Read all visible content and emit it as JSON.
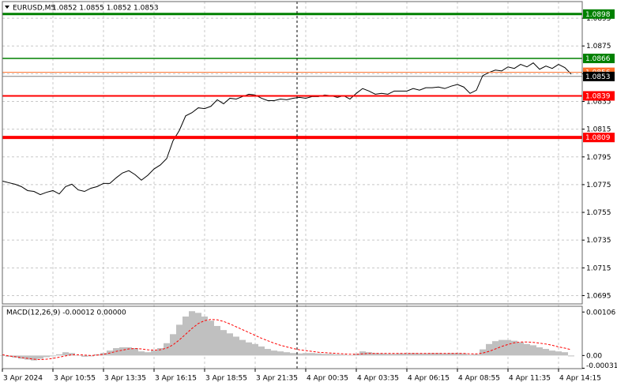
{
  "chart_data": [
    {
      "type": "line",
      "title": "EURUSD,M5",
      "subtitle": "1.0852 1.0855 1.0852 1.0853",
      "xlim": [
        0,
        367
      ],
      "xticks": [
        {
          "value": 0,
          "label": "3 Apr 2024"
        },
        {
          "value": 32,
          "label": "3 Apr 10:55"
        },
        {
          "value": 64,
          "label": "3 Apr 13:35"
        },
        {
          "value": 96,
          "label": "3 Apr 16:15"
        },
        {
          "value": 128,
          "label": "3 Apr 18:55"
        },
        {
          "value": 160,
          "label": "3 Apr 21:35"
        },
        {
          "value": 192,
          "label": "4 Apr 00:35"
        },
        {
          "value": 224,
          "label": "4 Apr 03:35"
        },
        {
          "value": 256,
          "label": "4 Apr 06:15"
        },
        {
          "value": 288,
          "label": "4 Apr 08:55"
        },
        {
          "value": 320,
          "label": "4 Apr 11:35"
        },
        {
          "value": 352,
          "label": "4 Apr 14:15"
        }
      ],
      "ylim": [
        1.0689,
        1.0907
      ],
      "yticks": [
        1.0695,
        1.0715,
        1.0735,
        1.0755,
        1.0775,
        1.0795,
        1.0815,
        1.0835,
        1.0855,
        1.0875,
        1.0895
      ],
      "grid": true,
      "x": [
        0,
        4,
        8,
        12,
        16,
        20,
        24,
        28,
        32,
        36,
        40,
        44,
        48,
        52,
        56,
        60,
        64,
        68,
        72,
        76,
        80,
        84,
        88,
        92,
        96,
        100,
        104,
        108,
        112,
        116,
        120,
        124,
        128,
        132,
        136,
        140,
        144,
        148,
        152,
        156,
        160,
        164,
        168,
        172,
        176,
        180,
        184,
        188,
        192,
        196,
        200,
        204,
        208,
        212,
        216,
        220,
        224,
        228,
        232,
        236,
        240,
        244,
        248,
        252,
        256,
        260,
        264,
        268,
        272,
        276,
        280,
        284,
        288,
        292,
        296,
        300,
        304,
        308,
        312,
        316,
        320,
        324,
        328,
        332,
        336,
        340,
        344,
        348,
        352,
        356,
        360
      ],
      "series": [
        {
          "color": "#000000",
          "values": [
            1.07776,
            1.07764,
            1.07753,
            1.07736,
            1.07707,
            1.07701,
            1.07678,
            1.07695,
            1.07707,
            1.07683,
            1.07736,
            1.07753,
            1.07712,
            1.07701,
            1.07724,
            1.07736,
            1.07759,
            1.07759,
            1.07799,
            1.07834,
            1.07851,
            1.07822,
            1.07782,
            1.07817,
            1.07863,
            1.07892,
            1.07938,
            1.08066,
            1.08141,
            1.08246,
            1.08269,
            1.08304,
            1.08298,
            1.08315,
            1.08362,
            1.08333,
            1.08373,
            1.08367,
            1.08385,
            1.08402,
            1.08396,
            1.08373,
            1.08356,
            1.08356,
            1.08367,
            1.08362,
            1.08373,
            1.08379,
            1.08373,
            1.08385,
            1.08385,
            1.08396,
            1.08391,
            1.08379,
            1.08391,
            1.08367,
            1.08408,
            1.08443,
            1.08425,
            1.08402,
            1.08408,
            1.08402,
            1.08425,
            1.08425,
            1.08425,
            1.08443,
            1.08431,
            1.08449,
            1.08449,
            1.08454,
            1.08443,
            1.0846,
            1.08472,
            1.08454,
            1.08408,
            1.08431,
            1.08536,
            1.08559,
            1.08576,
            1.0857,
            1.08599,
            1.08588,
            1.08617,
            1.08599,
            1.08628,
            1.08582,
            1.08605,
            1.08588,
            1.08617,
            1.08594,
            1.08547
          ]
        }
      ],
      "levels": [
        {
          "value": 1.0898,
          "color": "#008000",
          "width": 3
        },
        {
          "value": 1.0866,
          "color": "#008000",
          "width": 1.5
        },
        {
          "value": 1.0839,
          "color": "#ff0000",
          "width": 2
        },
        {
          "value": 1.0809,
          "color": "#ff0000",
          "width": 4
        }
      ],
      "ask": {
        "value": 1.0856,
        "color": "#ff6f2a"
      },
      "current_price": {
        "value": 1.0853,
        "color": "#000000"
      }
    },
    {
      "type": "macd",
      "title": "MACD(12,26,9) -0.00012 0.00000",
      "ylim": [
        -0.00032,
        0.0012
      ],
      "yticks": [
        0.00106,
        {
          "value": 0,
          "label": "0.00"
        },
        -0.00031
      ],
      "x": [
        0,
        4,
        8,
        12,
        16,
        20,
        24,
        28,
        32,
        36,
        40,
        44,
        48,
        52,
        56,
        60,
        64,
        68,
        72,
        76,
        80,
        84,
        88,
        92,
        96,
        100,
        104,
        108,
        112,
        116,
        120,
        124,
        128,
        132,
        136,
        140,
        144,
        148,
        152,
        156,
        160,
        164,
        168,
        172,
        176,
        180,
        184,
        188,
        192,
        196,
        200,
        204,
        208,
        212,
        216,
        220,
        224,
        228,
        232,
        236,
        240,
        244,
        248,
        252,
        256,
        260,
        264,
        268,
        272,
        276,
        280,
        284,
        288,
        292,
        296,
        300,
        304,
        308,
        312,
        316,
        320,
        324,
        328,
        332,
        336,
        340,
        344,
        348,
        352,
        356,
        360
      ],
      "series": [
        {
          "type": "bar",
          "color": "#c0c0c0",
          "values": [
            0,
            -3e-05,
            -5e-05,
            -8e-05,
            -0.0001,
            -0.00012,
            -8e-05,
            -4e-05,
            -2e-05,
            3e-05,
            8e-05,
            6e-05,
            0,
            -3e-05,
            -2e-05,
            3e-05,
            6e-05,
            0.00012,
            0.00018,
            0.0002,
            0.0002,
            0.00018,
            0.0001,
            8e-05,
            0.00012,
            0.00018,
            0.0003,
            0.00052,
            0.00075,
            0.00095,
            0.00108,
            0.00104,
            0.00095,
            0.00085,
            0.00072,
            0.00062,
            0.00054,
            0.00046,
            0.00038,
            0.00032,
            0.00028,
            0.00022,
            0.00016,
            0.00012,
            0.0001,
            8e-05,
            6e-05,
            5e-05,
            6e-05,
            6e-05,
            5e-05,
            4e-05,
            4e-05,
            3e-05,
            2e-05,
            0,
            4e-05,
            0.0001,
            8e-05,
            6e-05,
            5e-05,
            4e-05,
            4e-05,
            5e-05,
            5e-05,
            6e-05,
            5e-05,
            5e-05,
            6e-05,
            6e-05,
            5e-05,
            6e-05,
            6e-05,
            5e-05,
            2e-05,
            3e-05,
            0.00015,
            0.00028,
            0.00035,
            0.00038,
            0.00038,
            0.00036,
            0.00032,
            0.00028,
            0.00025,
            0.0002,
            0.00016,
            0.00012,
            0.0001,
            8e-05,
            -2e-05
          ]
        },
        {
          "type": "line",
          "color": "#ff0000",
          "dash": true,
          "values": [
            2e-05,
            -1e-05,
            -3e-05,
            -5e-05,
            -7e-05,
            -9e-05,
            -0.0001,
            -9e-05,
            -7e-05,
            -4e-05,
            -1e-05,
            2e-05,
            2e-05,
            1e-05,
            0,
            1e-05,
            3e-05,
            6e-05,
            0.0001,
            0.00013,
            0.00016,
            0.00017,
            0.00016,
            0.00014,
            0.00013,
            0.00014,
            0.00018,
            0.00026,
            0.00038,
            0.00052,
            0.00066,
            0.00078,
            0.00085,
            0.00088,
            0.00087,
            0.00083,
            0.00077,
            0.0007,
            0.00063,
            0.00056,
            0.00049,
            0.00042,
            0.00036,
            0.0003,
            0.00025,
            0.00021,
            0.00017,
            0.00014,
            0.00012,
            0.0001,
            8e-05,
            7e-05,
            6e-05,
            5e-05,
            4e-05,
            3e-05,
            3e-05,
            4e-05,
            5e-05,
            5e-05,
            5e-05,
            5e-05,
            5e-05,
            5e-05,
            5e-05,
            5e-05,
            5e-05,
            5e-05,
            5e-05,
            5e-05,
            5e-05,
            5e-05,
            5e-05,
            5e-05,
            4e-05,
            4e-05,
            6e-05,
            0.0001,
            0.00016,
            0.00022,
            0.00027,
            0.00031,
            0.00033,
            0.00033,
            0.00032,
            0.0003,
            0.00028,
            0.00025,
            0.00021,
            0.00018,
            0.00014
          ]
        }
      ]
    }
  ]
}
